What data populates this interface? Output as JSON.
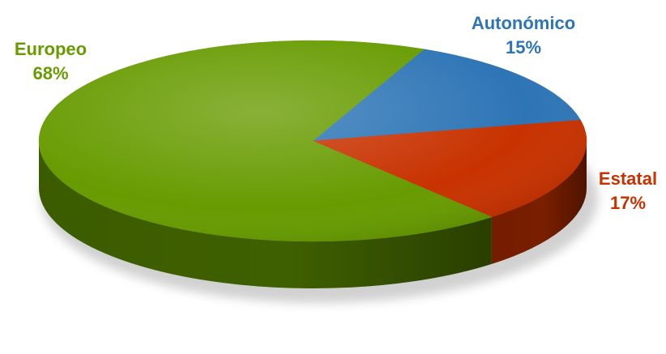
{
  "chart_data": {
    "type": "pie",
    "style": "3d",
    "slices": [
      {
        "label": "Autonómico",
        "value": 15,
        "value_label": "15%",
        "color": "#2E75B6",
        "side_color": "#1F4E79"
      },
      {
        "label": "Estatal",
        "value": 17,
        "value_label": "17%",
        "color": "#C83200",
        "side_color": "#7A1E00"
      },
      {
        "label": "Europeo",
        "value": 68,
        "value_label": "68%",
        "color": "#679B00",
        "side_color": "#3F6000"
      }
    ],
    "start_angle_deg": -66,
    "direction": "clockwise",
    "legend": "none"
  }
}
